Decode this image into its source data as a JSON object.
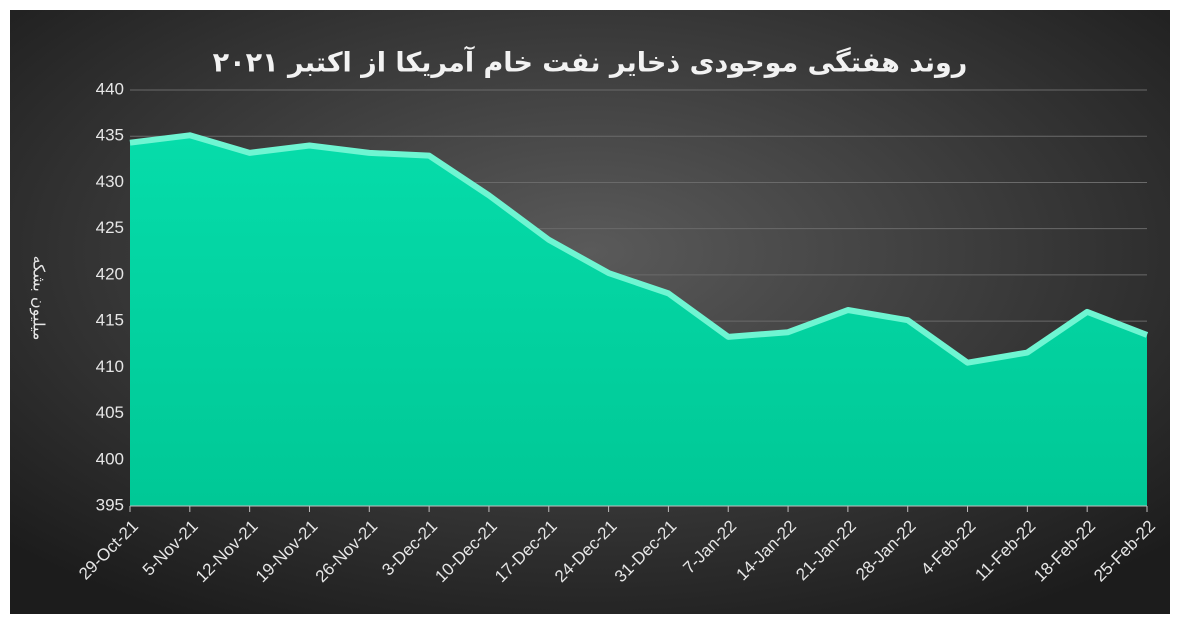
{
  "chart_data": {
    "type": "area",
    "title": "روند هفتگی موجودی ذخایر نفت خام آمریکا از اکتبر ۲۰۲۱",
    "y_label": "میلیون بشکه",
    "categories": [
      "29-Oct-21",
      "5-Nov-21",
      "12-Nov-21",
      "19-Nov-21",
      "26-Nov-21",
      "3-Dec-21",
      "10-Dec-21",
      "17-Dec-21",
      "24-Dec-21",
      "31-Dec-21",
      "7-Jan-22",
      "14-Jan-22",
      "21-Jan-22",
      "28-Jan-22",
      "4-Feb-22",
      "11-Feb-22",
      "18-Feb-22",
      "25-Feb-22"
    ],
    "values": [
      434.3,
      435.1,
      433.2,
      434.0,
      433.2,
      432.9,
      428.6,
      423.8,
      420.2,
      418.0,
      413.3,
      413.8,
      416.2,
      415.1,
      410.5,
      411.6,
      416.0,
      413.5
    ],
    "color": "#00d9a3",
    "ylim": [
      395,
      440
    ],
    "yticks": [
      395,
      400,
      405,
      410,
      415,
      420,
      425,
      430,
      435,
      440
    ],
    "grid": true
  }
}
